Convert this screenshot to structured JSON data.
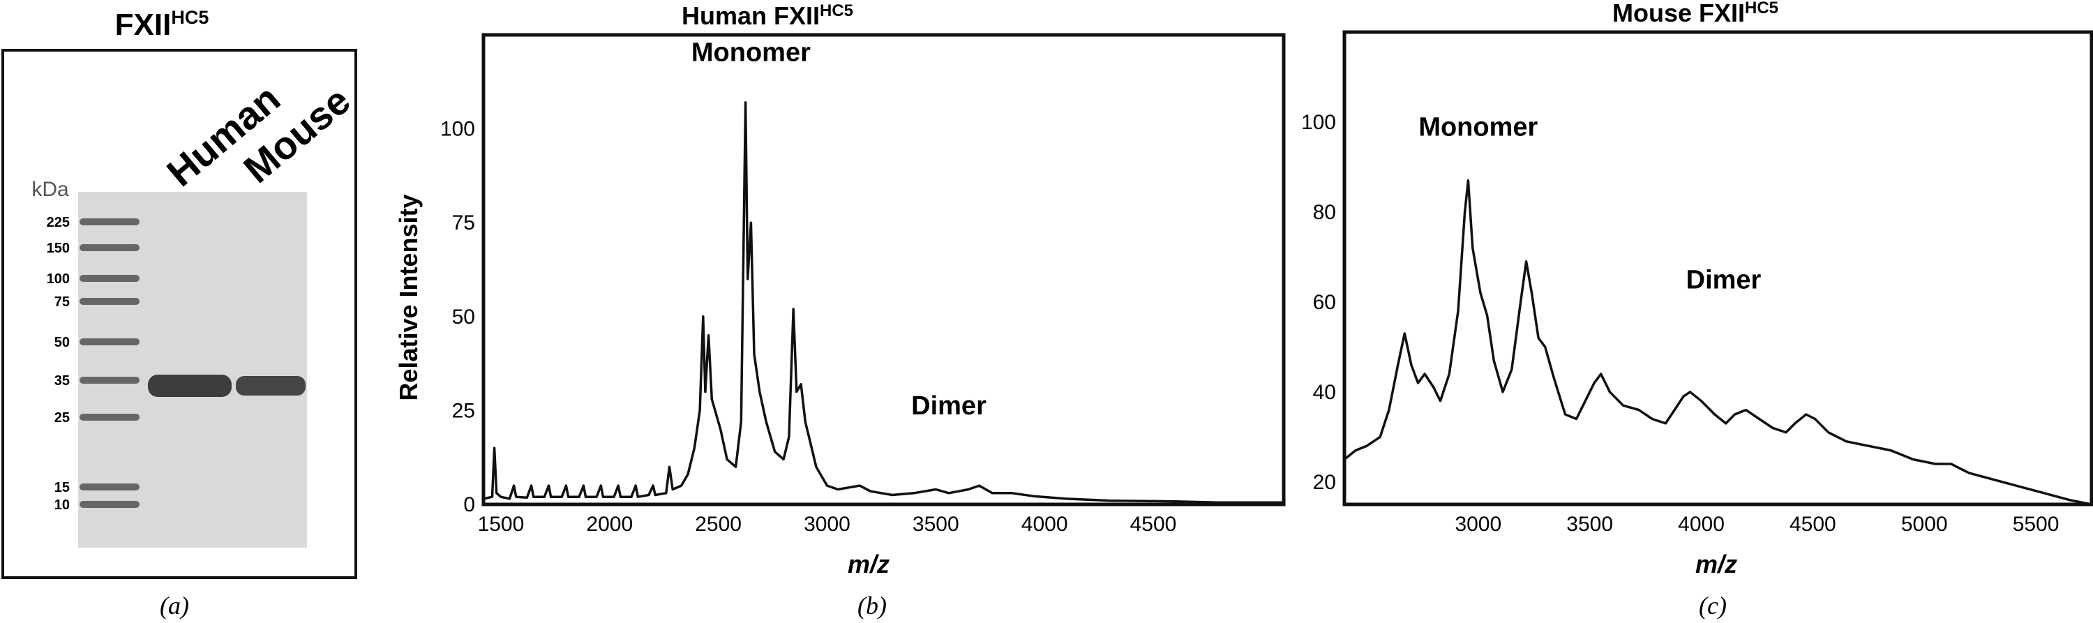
{
  "panel_a": {
    "title": "FXII",
    "title_sup": "HC5",
    "unit_label": "kDa",
    "lane_labels": [
      "Human",
      "Mouse"
    ],
    "ladder": [
      "225",
      "150",
      "100",
      "75",
      "50",
      "35",
      "25",
      "15",
      "10"
    ],
    "caption": "(a)"
  },
  "chart_data": [
    {
      "type": "line",
      "title": "Human FXII",
      "title_sup": "HC5",
      "xlabel": "m/z",
      "ylabel": "Relative Intensity",
      "xlim": [
        1420,
        5100
      ],
      "ylim": [
        0,
        125
      ],
      "xticks": [
        "1500",
        "2000",
        "2500",
        "3000",
        "3500",
        "4000",
        "4500"
      ],
      "yticks": [
        "0",
        "25",
        "50",
        "75",
        "100"
      ],
      "annotations": [
        {
          "text": "Monomer",
          "x": 2650,
          "y": 118
        },
        {
          "text": "Dimer",
          "x": 3560,
          "y": 24
        }
      ],
      "series": [
        {
          "points": [
            [
              1420,
              1.5
            ],
            [
              1460,
              2
            ],
            [
              1470,
              15
            ],
            [
              1480,
              3
            ],
            [
              1500,
              2
            ],
            [
              1540,
              1.5
            ],
            [
              1560,
              5
            ],
            [
              1570,
              2
            ],
            [
              1620,
              1.8
            ],
            [
              1640,
              5
            ],
            [
              1650,
              2
            ],
            [
              1700,
              2
            ],
            [
              1720,
              5
            ],
            [
              1730,
              2
            ],
            [
              1780,
              2
            ],
            [
              1800,
              5
            ],
            [
              1810,
              2
            ],
            [
              1860,
              2
            ],
            [
              1880,
              5
            ],
            [
              1890,
              2
            ],
            [
              1940,
              2
            ],
            [
              1960,
              5
            ],
            [
              1970,
              2
            ],
            [
              2020,
              2
            ],
            [
              2040,
              5
            ],
            [
              2050,
              2
            ],
            [
              2100,
              2
            ],
            [
              2120,
              5
            ],
            [
              2130,
              2
            ],
            [
              2180,
              2.5
            ],
            [
              2200,
              5
            ],
            [
              2210,
              2.5
            ],
            [
              2260,
              3
            ],
            [
              2275,
              10
            ],
            [
              2290,
              4
            ],
            [
              2330,
              5
            ],
            [
              2360,
              8
            ],
            [
              2390,
              15
            ],
            [
              2415,
              25
            ],
            [
              2430,
              50
            ],
            [
              2440,
              30
            ],
            [
              2455,
              45
            ],
            [
              2470,
              28
            ],
            [
              2490,
              24
            ],
            [
              2510,
              20
            ],
            [
              2540,
              12
            ],
            [
              2580,
              10
            ],
            [
              2605,
              22
            ],
            [
              2625,
              107
            ],
            [
              2635,
              60
            ],
            [
              2650,
              75
            ],
            [
              2665,
              40
            ],
            [
              2690,
              30
            ],
            [
              2720,
              22
            ],
            [
              2760,
              14
            ],
            [
              2800,
              12
            ],
            [
              2825,
              18
            ],
            [
              2845,
              52
            ],
            [
              2860,
              30
            ],
            [
              2880,
              32
            ],
            [
              2900,
              22
            ],
            [
              2950,
              10
            ],
            [
              3000,
              5
            ],
            [
              3050,
              4
            ],
            [
              3100,
              4.5
            ],
            [
              3150,
              5
            ],
            [
              3200,
              3.5
            ],
            [
              3300,
              2.5
            ],
            [
              3400,
              3
            ],
            [
              3500,
              4
            ],
            [
              3560,
              3
            ],
            [
              3650,
              4
            ],
            [
              3700,
              5
            ],
            [
              3760,
              3
            ],
            [
              3850,
              3
            ],
            [
              3950,
              2.2
            ],
            [
              4100,
              1.5
            ],
            [
              4300,
              1
            ],
            [
              4600,
              0.8
            ],
            [
              4800,
              0.5
            ],
            [
              5100,
              0.5
            ]
          ]
        }
      ],
      "caption": "(b)"
    },
    {
      "type": "line",
      "title": "Mouse FXII",
      "title_sup": "HC5",
      "xlabel": "m/z",
      "ylabel": "",
      "xlim": [
        2400,
        5750
      ],
      "ylim": [
        15,
        120
      ],
      "xticks": [
        "3000",
        "3500",
        "4000",
        "4500",
        "5000",
        "5500"
      ],
      "yticks": [
        "20",
        "40",
        "60",
        "80",
        "100"
      ],
      "annotations": [
        {
          "text": "Monomer",
          "x": 3000,
          "y": 97
        },
        {
          "text": "Dimer",
          "x": 4100,
          "y": 63
        }
      ],
      "series": [
        {
          "points": [
            [
              2400,
              25
            ],
            [
              2450,
              27
            ],
            [
              2500,
              28
            ],
            [
              2560,
              30
            ],
            [
              2600,
              36
            ],
            [
              2640,
              46
            ],
            [
              2670,
              53
            ],
            [
              2700,
              46
            ],
            [
              2730,
              42
            ],
            [
              2760,
              44
            ],
            [
              2800,
              41
            ],
            [
              2830,
              38
            ],
            [
              2870,
              44
            ],
            [
              2910,
              58
            ],
            [
              2940,
              80
            ],
            [
              2955,
              87
            ],
            [
              2975,
              72
            ],
            [
              3010,
              62
            ],
            [
              3040,
              57
            ],
            [
              3070,
              47
            ],
            [
              3110,
              40
            ],
            [
              3150,
              45
            ],
            [
              3190,
              60
            ],
            [
              3215,
              69
            ],
            [
              3240,
              62
            ],
            [
              3270,
              52
            ],
            [
              3300,
              50
            ],
            [
              3340,
              43
            ],
            [
              3390,
              35
            ],
            [
              3440,
              34
            ],
            [
              3480,
              38
            ],
            [
              3520,
              42
            ],
            [
              3550,
              44
            ],
            [
              3590,
              40
            ],
            [
              3650,
              37
            ],
            [
              3720,
              36
            ],
            [
              3780,
              34
            ],
            [
              3840,
              33
            ],
            [
              3880,
              36
            ],
            [
              3920,
              39
            ],
            [
              3950,
              40
            ],
            [
              4000,
              38
            ],
            [
              4060,
              35
            ],
            [
              4110,
              33
            ],
            [
              4150,
              35
            ],
            [
              4200,
              36
            ],
            [
              4260,
              34
            ],
            [
              4320,
              32
            ],
            [
              4380,
              31
            ],
            [
              4420,
              33
            ],
            [
              4470,
              35
            ],
            [
              4510,
              34
            ],
            [
              4570,
              31
            ],
            [
              4650,
              29
            ],
            [
              4750,
              28
            ],
            [
              4850,
              27
            ],
            [
              4950,
              25
            ],
            [
              5050,
              24
            ],
            [
              5120,
              24
            ],
            [
              5200,
              22
            ],
            [
              5350,
              20
            ],
            [
              5500,
              18
            ],
            [
              5650,
              16
            ],
            [
              5750,
              15
            ]
          ]
        }
      ],
      "caption": "(c)"
    }
  ]
}
